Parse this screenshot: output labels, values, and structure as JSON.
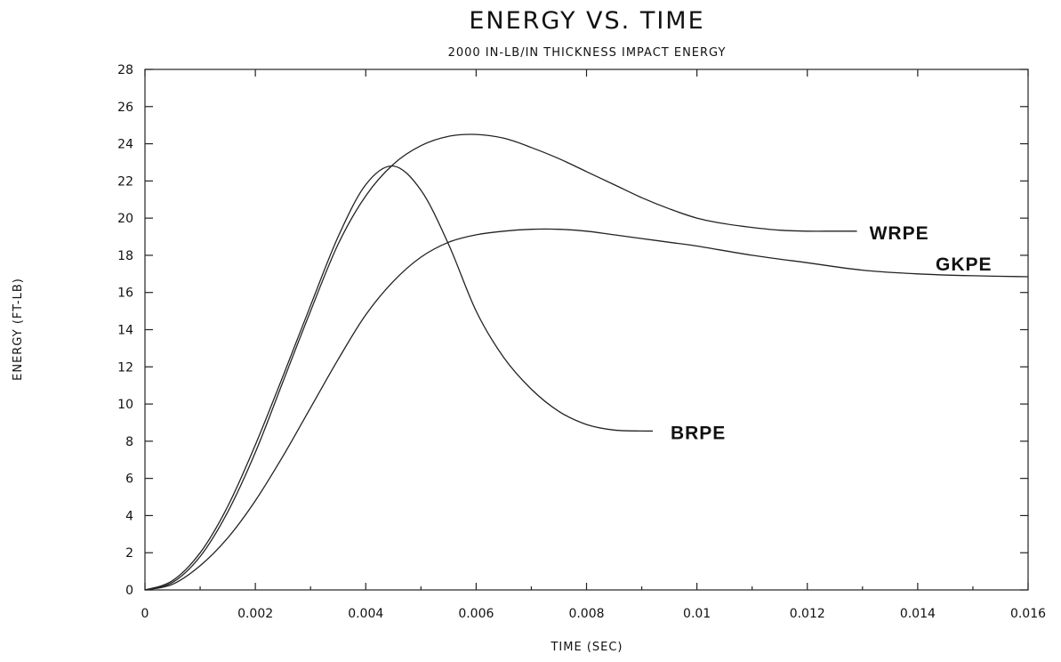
{
  "chart_data": {
    "type": "line",
    "title": "ENERGY VS. TIME",
    "subtitle": "2000 IN-LB/IN THICKNESS IMPACT ENERGY",
    "xlabel": "TIME (SEC)",
    "ylabel": "ENERGY (FT-LB)",
    "xlim": [
      0,
      0.016
    ],
    "ylim": [
      0,
      28
    ],
    "x_ticks": [
      0,
      0.002,
      0.004,
      0.006,
      0.008,
      0.01,
      0.012,
      0.014,
      0.016
    ],
    "x_tick_labels": [
      "0",
      "0.002",
      "0.004",
      "0.006",
      "0.008",
      "0.01",
      "0.012",
      "0.014",
      "0.016"
    ],
    "y_ticks": [
      0,
      2,
      4,
      6,
      8,
      10,
      12,
      14,
      16,
      18,
      20,
      22,
      24,
      26,
      28
    ],
    "y_tick_labels": [
      "0",
      "2",
      "4",
      "6",
      "8",
      "10",
      "12",
      "14",
      "16",
      "18",
      "20",
      "22",
      "24",
      "26",
      "28"
    ],
    "grid": false,
    "legend": "none",
    "series": [
      {
        "name": "WRPE",
        "x": [
          0,
          0.0005,
          0.001,
          0.0015,
          0.002,
          0.0025,
          0.003,
          0.0035,
          0.004,
          0.0045,
          0.005,
          0.0055,
          0.006,
          0.0065,
          0.007,
          0.0075,
          0.008,
          0.0085,
          0.009,
          0.0095,
          0.01,
          0.0105,
          0.011,
          0.0115,
          0.012,
          0.0125,
          0.0129
        ],
        "y": [
          0,
          0.4,
          1.8,
          4.2,
          7.4,
          11.2,
          15.0,
          18.6,
          21.2,
          22.9,
          23.9,
          24.4,
          24.5,
          24.3,
          23.8,
          23.2,
          22.5,
          21.8,
          21.1,
          20.5,
          20.0,
          19.7,
          19.5,
          19.35,
          19.3,
          19.3,
          19.3
        ]
      },
      {
        "name": "BRPE",
        "x": [
          0,
          0.0005,
          0.001,
          0.0015,
          0.002,
          0.0025,
          0.003,
          0.0035,
          0.004,
          0.0045,
          0.005,
          0.0055,
          0.006,
          0.0065,
          0.007,
          0.0075,
          0.008,
          0.0085,
          0.009,
          0.0092
        ],
        "y": [
          0,
          0.5,
          2.0,
          4.5,
          7.8,
          11.5,
          15.3,
          19.0,
          21.8,
          22.8,
          21.5,
          18.6,
          15.0,
          12.5,
          10.8,
          9.6,
          8.9,
          8.6,
          8.55,
          8.55
        ]
      },
      {
        "name": "GKPE",
        "x": [
          0,
          0.0005,
          0.001,
          0.0015,
          0.002,
          0.0025,
          0.003,
          0.0035,
          0.004,
          0.0045,
          0.005,
          0.0055,
          0.006,
          0.0065,
          0.007,
          0.0075,
          0.008,
          0.0085,
          0.009,
          0.0095,
          0.01,
          0.011,
          0.012,
          0.013,
          0.014,
          0.015,
          0.016
        ],
        "y": [
          0,
          0.3,
          1.3,
          2.8,
          4.8,
          7.2,
          9.8,
          12.4,
          14.8,
          16.6,
          17.9,
          18.7,
          19.1,
          19.3,
          19.4,
          19.4,
          19.3,
          19.1,
          18.9,
          18.7,
          18.5,
          18.0,
          17.6,
          17.2,
          17.0,
          16.9,
          16.85
        ]
      }
    ]
  }
}
